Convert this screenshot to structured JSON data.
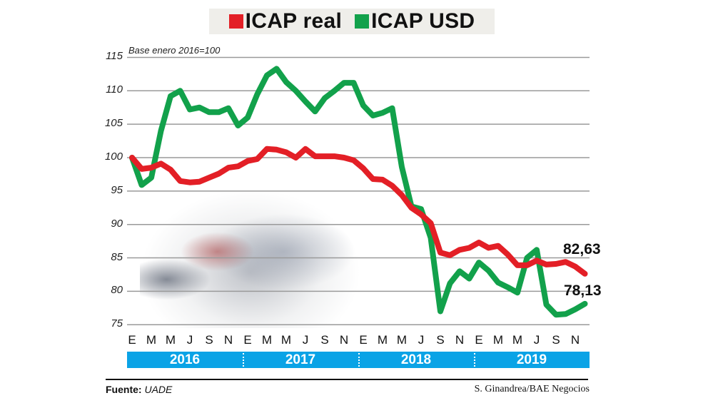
{
  "legend": {
    "items": [
      {
        "label": "ICAP real",
        "color": "#e31f26"
      },
      {
        "label": "ICAP USD",
        "color": "#12a14b"
      }
    ]
  },
  "subtitle": "Base enero 2016=100",
  "y_ticks": [
    "115",
    "110",
    "105",
    "100",
    "95",
    "90",
    "85",
    "80",
    "75"
  ],
  "x_month_labels": [
    "E",
    "M",
    "M",
    "J",
    "S",
    "N",
    "E",
    "M",
    "M",
    "J",
    "S",
    "N",
    "E",
    "M",
    "M",
    "J",
    "S",
    "N",
    "E",
    "M",
    "M",
    "J",
    "S",
    "N"
  ],
  "years": [
    "2016",
    "2017",
    "2018",
    "2019"
  ],
  "end_labels": {
    "real": "82,63",
    "usd": "78,13"
  },
  "footer": {
    "source_label": "Fuente:",
    "source_value": "UADE",
    "credit": "S. Ginandrea/BAE Negocios"
  },
  "chart_data": {
    "type": "line",
    "title": "ICAP real / ICAP USD",
    "subtitle": "Base enero 2016=100",
    "xlabel": "",
    "ylabel": "",
    "ylim": [
      75,
      115
    ],
    "yticks": [
      75,
      80,
      85,
      90,
      95,
      100,
      105,
      110,
      115
    ],
    "grid": true,
    "legend_position": "top",
    "x": [
      "2016-01",
      "2016-02",
      "2016-03",
      "2016-04",
      "2016-05",
      "2016-06",
      "2016-07",
      "2016-08",
      "2016-09",
      "2016-10",
      "2016-11",
      "2016-12",
      "2017-01",
      "2017-02",
      "2017-03",
      "2017-04",
      "2017-05",
      "2017-06",
      "2017-07",
      "2017-08",
      "2017-09",
      "2017-10",
      "2017-11",
      "2017-12",
      "2018-01",
      "2018-02",
      "2018-03",
      "2018-04",
      "2018-05",
      "2018-06",
      "2018-07",
      "2018-08",
      "2018-09",
      "2018-10",
      "2018-11",
      "2018-12",
      "2019-01",
      "2019-02",
      "2019-03",
      "2019-04",
      "2019-05",
      "2019-06",
      "2019-07",
      "2019-08",
      "2019-09",
      "2019-10",
      "2019-11",
      "2019-12"
    ],
    "series": [
      {
        "name": "ICAP real",
        "color": "#e31f26",
        "values": [
          100,
          98.3,
          98.5,
          99.1,
          98.2,
          96.5,
          96.3,
          96.4,
          97.0,
          97.6,
          98.5,
          98.7,
          99.5,
          99.8,
          101.3,
          101.2,
          100.8,
          100.0,
          101.3,
          100.2,
          100.2,
          100.2,
          100.0,
          99.6,
          98.4,
          96.8,
          96.7,
          95.8,
          94.4,
          92.5,
          91.5,
          90.2,
          85.8,
          85.4,
          86.2,
          86.5,
          87.3,
          86.5,
          86.8,
          85.5,
          83.9,
          83.9,
          84.6,
          84.0,
          84.1,
          84.4,
          83.7,
          82.63
        ]
      },
      {
        "name": "ICAP USD",
        "color": "#12a14b",
        "values": [
          100,
          95.9,
          97.0,
          104.0,
          109.2,
          110.0,
          107.2,
          107.5,
          106.8,
          106.8,
          107.4,
          104.8,
          106.0,
          109.5,
          112.3,
          113.3,
          111.3,
          110.0,
          108.4,
          106.9,
          108.9,
          110.0,
          111.2,
          111.2,
          107.8,
          106.3,
          106.7,
          107.4,
          98.6,
          92.7,
          92.3,
          88.0,
          77.0,
          81.2,
          83.0,
          81.9,
          84.3,
          83.1,
          81.3,
          80.6,
          79.8,
          85.0,
          86.2,
          78.0,
          76.5,
          76.6,
          77.3,
          78.13
        ]
      }
    ],
    "annotations": [
      {
        "text": "82,63",
        "series": "ICAP real",
        "x": "2019-12"
      },
      {
        "text": "78,13",
        "series": "ICAP USD",
        "x": "2019-12"
      }
    ],
    "source": "Fuente: UADE",
    "credit": "S. Ginandrea/BAE Negocios"
  }
}
